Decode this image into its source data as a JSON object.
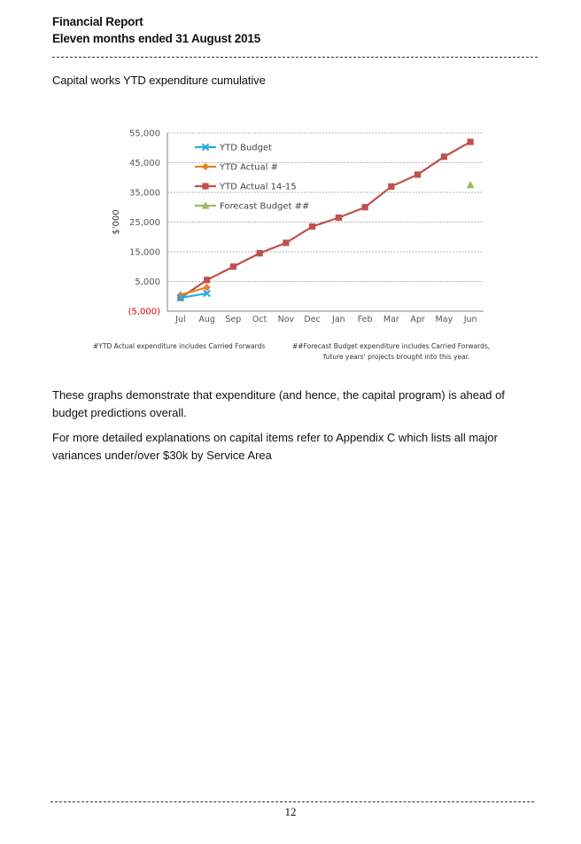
{
  "header": {
    "title": "Financial Report",
    "subtitle": "Eleven months ended 31 August 2015"
  },
  "section_title": "Capital works YTD expenditure cumulative",
  "chart_data": {
    "type": "line",
    "title": "",
    "xlabel": "",
    "ylabel": "$'000",
    "categories": [
      "Jul",
      "Aug",
      "Sep",
      "Oct",
      "Nov",
      "Dec",
      "Jan",
      "Feb",
      "Mar",
      "Apr",
      "May",
      "Jun"
    ],
    "y_ticks": [
      -5000,
      5000,
      15000,
      25000,
      35000,
      45000,
      55000
    ],
    "y_tick_labels": [
      "(5,000)",
      "5,000",
      "15,000",
      "25,000",
      "35,000",
      "45,000",
      "55,000"
    ],
    "ylim": [
      -5000,
      55000
    ],
    "grid": true,
    "legend_position": "top-left",
    "series": [
      {
        "name": "YTD Budget",
        "color": "#29abe2",
        "marker": "x",
        "values": [
          -500,
          1000,
          null,
          null,
          null,
          null,
          null,
          null,
          null,
          null,
          null,
          null
        ]
      },
      {
        "name": "YTD Actual #",
        "color": "#e8812a",
        "marker": "diamond",
        "values": [
          500,
          3000,
          null,
          null,
          null,
          null,
          null,
          null,
          null,
          null,
          null,
          null
        ]
      },
      {
        "name": "YTD Actual 14-15",
        "color": "#c0504d",
        "marker": "square",
        "values": [
          -500,
          5500,
          10000,
          14500,
          18000,
          23500,
          26500,
          30000,
          37000,
          41000,
          47000,
          52000
        ]
      },
      {
        "name": "Forecast Budget ##",
        "color": "#9bbb59",
        "marker": "triangle",
        "values": [
          null,
          null,
          null,
          null,
          null,
          null,
          null,
          null,
          null,
          null,
          null,
          37500
        ]
      }
    ]
  },
  "footnotes": {
    "left": "#YTD Actual expenditure includes Carried Forwards",
    "right_line1": "##Forecast Budget expenditure includes Carried Forwards,",
    "right_line2": "future years' projects brought into this year."
  },
  "paragraphs": {
    "p1": "These graphs demonstrate that expenditure (and hence, the capital program) is ahead of budget predictions overall.",
    "p2": "For more detailed explanations on capital items refer to Appendix C which lists all major variances under/over $30k by Service Area"
  },
  "page_number": "12"
}
